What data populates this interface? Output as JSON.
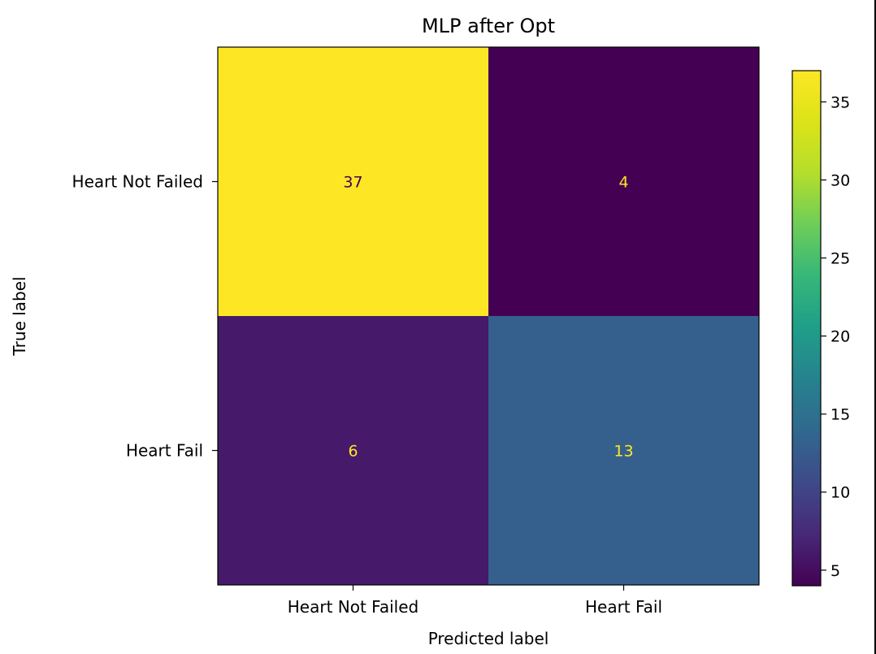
{
  "chart_data": {
    "type": "heatmap",
    "title": "MLP after Opt",
    "xlabel": "Predicted label",
    "ylabel": "True label",
    "x_categories": [
      "Heart Not Failed",
      "Heart Fail"
    ],
    "y_categories": [
      "Heart Not Failed",
      "Heart Fail"
    ],
    "values": [
      [
        37,
        4
      ],
      [
        6,
        13
      ]
    ],
    "colormap": "viridis",
    "colorbar": {
      "min": 4,
      "max": 37,
      "ticks": [
        5,
        10,
        15,
        20,
        25,
        30,
        35
      ]
    },
    "cell_text_colors": {
      "on_dark": "#FDE725",
      "on_light": "#440154"
    },
    "grid": false
  }
}
